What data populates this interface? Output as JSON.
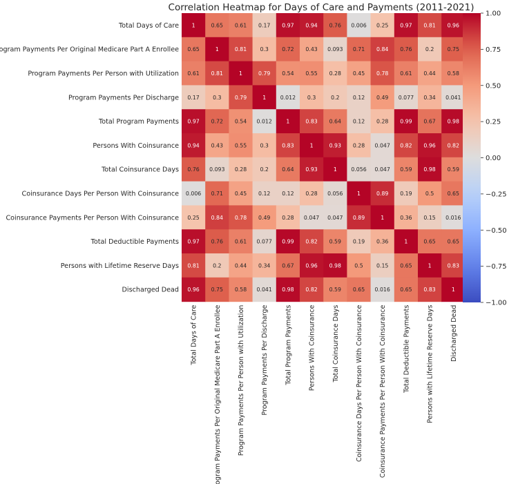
{
  "chart_data": {
    "type": "heatmap",
    "title": "Correlation Heatmap for Days of Care and Payments (2011-2021)",
    "variables": [
      "Total Days of Care",
      "Program Payments Per Original Medicare Part A Enrollee",
      "Program Payments Per Person with Utilization",
      "Program Payments Per Discharge",
      "Total Program Payments",
      "Persons With Coinsurance",
      "Total Coinsurance Days",
      "Coinsurance Days Per Person With Coinsurance",
      "Coinsurance Payments Per Person With Coinsurance",
      "Total Deductible Payments",
      "Persons with Lifetime Reserve Days",
      "Discharged Dead"
    ],
    "values": [
      [
        1,
        0.65,
        0.61,
        0.17,
        0.97,
        0.94,
        0.76,
        0.006,
        0.25,
        0.97,
        0.81,
        0.96
      ],
      [
        0.65,
        1,
        0.81,
        0.3,
        0.72,
        0.43,
        0.093,
        0.71,
        0.84,
        0.76,
        0.2,
        0.75
      ],
      [
        0.61,
        0.81,
        1,
        0.79,
        0.54,
        0.55,
        0.28,
        0.45,
        0.78,
        0.61,
        0.44,
        0.58
      ],
      [
        0.17,
        0.3,
        0.79,
        1,
        0.012,
        0.3,
        0.2,
        0.12,
        0.49,
        0.077,
        0.34,
        0.041
      ],
      [
        0.97,
        0.72,
        0.54,
        0.012,
        1,
        0.83,
        0.64,
        0.12,
        0.28,
        0.99,
        0.67,
        0.98
      ],
      [
        0.94,
        0.43,
        0.55,
        0.3,
        0.83,
        1,
        0.93,
        0.28,
        0.047,
        0.82,
        0.96,
        0.82
      ],
      [
        0.76,
        0.093,
        0.28,
        0.2,
        0.64,
        0.93,
        1,
        0.056,
        0.047,
        0.59,
        0.98,
        0.59
      ],
      [
        0.006,
        0.71,
        0.45,
        0.12,
        0.12,
        0.28,
        0.056,
        1,
        0.89,
        0.19,
        0.5,
        0.65
      ],
      [
        0.25,
        0.84,
        0.78,
        0.49,
        0.28,
        0.047,
        0.047,
        0.89,
        1,
        0.36,
        0.15,
        0.016
      ],
      [
        0.97,
        0.76,
        0.61,
        0.077,
        0.99,
        0.82,
        0.59,
        0.19,
        0.36,
        1,
        0.65,
        0.65
      ],
      [
        0.81,
        0.2,
        0.44,
        0.34,
        0.67,
        0.96,
        0.98,
        0.5,
        0.15,
        0.65,
        1,
        0.83
      ],
      [
        0.96,
        0.75,
        0.58,
        0.041,
        0.98,
        0.82,
        0.59,
        0.65,
        0.016,
        0.65,
        0.83,
        1
      ]
    ],
    "colorbar": {
      "range": [
        -1.0,
        1.0
      ],
      "ticks": [
        1.0,
        0.75,
        0.5,
        0.25,
        0.0,
        -0.25,
        -0.5,
        -0.75,
        -1.0
      ],
      "tick_labels": [
        "1.00",
        "0.75",
        "0.50",
        "0.25",
        "0.00",
        "−0.25",
        "−0.50",
        "−0.75",
        "−1.00"
      ],
      "colormap": "coolwarm"
    },
    "annotations": "cell values shown",
    "grid": false
  }
}
